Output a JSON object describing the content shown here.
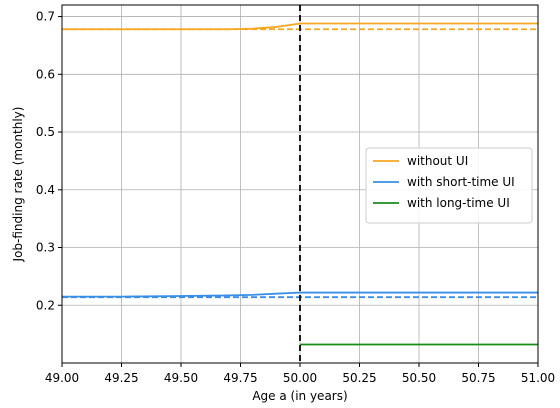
{
  "chart_data": {
    "type": "line",
    "title": "",
    "xlabel": "Age a (in years)",
    "ylabel": "Job-finding rate (monthly)",
    "xlim": [
      49.0,
      51.0
    ],
    "ylim": [
      0.1,
      0.72
    ],
    "xticks": [
      49.0,
      49.25,
      49.5,
      49.75,
      50.0,
      50.25,
      50.5,
      50.75,
      51.0
    ],
    "xtick_labels": [
      "49.00",
      "49.25",
      "49.50",
      "49.75",
      "50.00",
      "50.25",
      "50.50",
      "50.75",
      "51.00"
    ],
    "yticks": [
      0.2,
      0.3,
      0.4,
      0.5,
      0.6,
      0.7
    ],
    "ytick_labels": [
      "0.2",
      "0.3",
      "0.4",
      "0.5",
      "0.6",
      "0.7"
    ],
    "grid": true,
    "legend_position": "center-right",
    "vline": {
      "x": 50.0,
      "style": "dashed",
      "color": "#000000"
    },
    "series": [
      {
        "name": "without UI",
        "color": "#f5a623",
        "style": "solid",
        "x": [
          49.0,
          49.25,
          49.5,
          49.7,
          49.8,
          49.9,
          49.95,
          50.0,
          50.25,
          50.5,
          50.75,
          51.0
        ],
        "y": [
          0.678,
          0.678,
          0.678,
          0.678,
          0.679,
          0.682,
          0.685,
          0.688,
          0.688,
          0.688,
          0.688,
          0.688
        ]
      },
      {
        "name": "",
        "color": "#f5a623",
        "style": "dashed",
        "x": [
          49.0,
          51.0
        ],
        "y": [
          0.678,
          0.678
        ]
      },
      {
        "name": "with short-time UI",
        "color": "#3a8ee6",
        "style": "solid",
        "x": [
          49.0,
          49.25,
          49.5,
          49.7,
          49.8,
          49.9,
          49.95,
          50.0,
          50.25,
          50.5,
          50.75,
          51.0
        ],
        "y": [
          0.215,
          0.215,
          0.216,
          0.217,
          0.218,
          0.22,
          0.221,
          0.222,
          0.222,
          0.222,
          0.222,
          0.222
        ]
      },
      {
        "name": "",
        "color": "#3a8ee6",
        "style": "dashed",
        "x": [
          49.0,
          51.0
        ],
        "y": [
          0.214,
          0.214
        ]
      },
      {
        "name": "with long-time UI",
        "color": "#1a8a1a",
        "style": "solid",
        "x": [
          50.0,
          51.0
        ],
        "y": [
          0.132,
          0.132
        ]
      }
    ]
  }
}
